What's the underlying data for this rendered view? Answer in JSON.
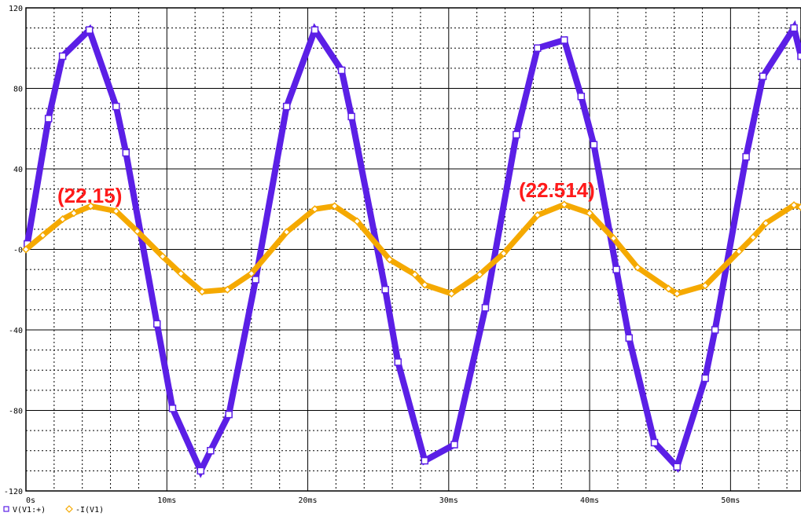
{
  "chart_data": {
    "type": "line",
    "xlim": [
      0,
      55
    ],
    "ylim": [
      -120,
      120
    ],
    "xticks": [
      {
        "value": 0,
        "label": "0s"
      },
      {
        "value": 10,
        "label": "10ms"
      },
      {
        "value": 20,
        "label": "20ms"
      },
      {
        "value": 30,
        "label": "30ms"
      },
      {
        "value": 40,
        "label": "40ms"
      },
      {
        "value": 50,
        "label": "50ms"
      }
    ],
    "yticks": [
      -120,
      -80,
      -40,
      {
        "value": 0,
        "label": "-0"
      },
      40,
      80,
      120
    ],
    "minor_xticks": [
      2,
      4,
      6,
      8,
      12,
      14,
      16,
      18,
      22,
      24,
      26,
      28,
      32,
      34,
      36,
      38,
      42,
      44,
      46,
      48,
      52,
      54
    ],
    "minor_yticks": [
      -110,
      -100,
      -90,
      -70,
      -60,
      -50,
      -30,
      -20,
      -10,
      10,
      20,
      30,
      50,
      60,
      70,
      90,
      100,
      110
    ],
    "grid": true,
    "legend": "bottom-left",
    "series": [
      {
        "name": "V(V1:+)",
        "color": "#5b1fe6",
        "marker": "square",
        "x": [
          0.1,
          1.6,
          2.6,
          4.5,
          6.4,
          7.1,
          9.3,
          10.4,
          12.4,
          13.1,
          14.4,
          16.3,
          18.5,
          20.5,
          22.4,
          23.1,
          25.5,
          26.4,
          28.3,
          30.4,
          32.6,
          34.8,
          36.3,
          38.2,
          39.4,
          40.3,
          41.9,
          42.8,
          44.6,
          46.2,
          48.2,
          48.9,
          51.1,
          52.3,
          54.5,
          55
        ],
        "values": [
          2.7,
          65,
          96,
          109,
          71,
          48,
          -37,
          -79,
          -110,
          -100,
          -82,
          -15,
          71,
          109,
          89,
          66,
          -20,
          -56,
          -105,
          -97,
          -29,
          57,
          100,
          104,
          76,
          52,
          -10,
          -44,
          -96,
          -108,
          -64,
          -40,
          46,
          86,
          110,
          96
        ]
      },
      {
        "name": "-I(V1)",
        "color": "#f5a900",
        "marker": "diamond",
        "x": [
          0,
          1.2,
          2.6,
          3.4,
          4.6,
          6.4,
          7.9,
          9.7,
          11,
          12.5,
          14.3,
          16,
          18.5,
          20.5,
          21.9,
          23.5,
          25.8,
          27.6,
          28.3,
          30.2,
          32.2,
          33.9,
          36.3,
          38.2,
          40,
          41.7,
          43.4,
          45.6,
          46.2,
          48.2,
          50.6,
          51.6,
          52.5,
          54.5,
          55
        ],
        "values": [
          0,
          7,
          15,
          18,
          21.5,
          19,
          9,
          -3.5,
          -12,
          -21,
          -20,
          -12,
          8.6,
          20,
          21.5,
          14,
          -5,
          -12.5,
          -17.6,
          -22,
          -12.5,
          -2,
          17,
          22.3,
          18,
          5.5,
          -9,
          -19.5,
          -22,
          -18,
          -1,
          6,
          13,
          22,
          21
        ]
      }
    ],
    "annotations": [
      "(22.15)",
      "(22.514)"
    ]
  }
}
